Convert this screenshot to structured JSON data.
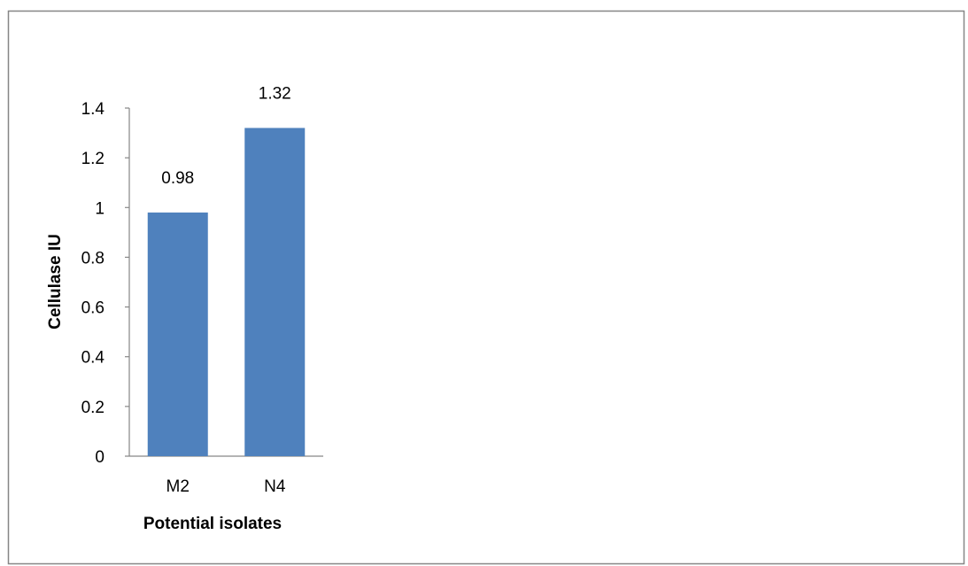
{
  "chart_data": {
    "type": "bar",
    "title": "",
    "xlabel": "Potential isolates",
    "ylabel": "Cellulase IU",
    "categories": [
      "M2",
      "N4"
    ],
    "values": [
      0.98,
      1.32
    ],
    "data_labels": [
      "0.98",
      "1.32"
    ],
    "ylim": [
      0,
      1.4
    ],
    "yticks": [
      0,
      0.2,
      0.4,
      0.6,
      0.8,
      1,
      1.2,
      1.4
    ],
    "ytick_labels": [
      "0",
      "0.2",
      "0.4",
      "0.6",
      "0.8",
      "1",
      "1.2",
      "1.4"
    ],
    "grid": false,
    "legend": "none",
    "bar_color": "#4f81bd",
    "axis_color": "#868686",
    "frame_color": "#868686"
  }
}
